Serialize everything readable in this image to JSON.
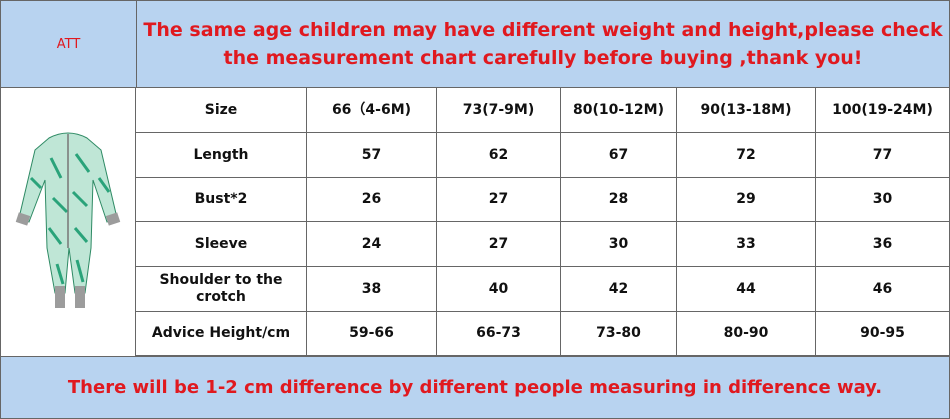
{
  "header": {
    "corner": "ATT",
    "notice_lines": [
      "The same age children may have different weight and height,please check",
      "the measurement chart carefully before buying ,thank you!"
    ]
  },
  "table": {
    "rows": [
      [
        "Size",
        "66（4-6M)",
        "73(7-9M)",
        "80(10-12M)",
        "90(13-18M)",
        "100(19-24M)"
      ],
      [
        "Length",
        "57",
        "62",
        "67",
        "72",
        "77"
      ],
      [
        "Bust*2",
        "26",
        "27",
        "28",
        "29",
        "30"
      ],
      [
        "Sleeve",
        "24",
        "27",
        "30",
        "33",
        "36"
      ],
      [
        "Shoulder to the crotch",
        "38",
        "40",
        "42",
        "44",
        "46"
      ],
      [
        "Advice Height/cm",
        "59-66",
        "66-73",
        "73-80",
        "80-90",
        "90-95"
      ]
    ]
  },
  "footer": {
    "notice": "There will be 1-2 cm difference by different people measuring in difference way."
  }
}
